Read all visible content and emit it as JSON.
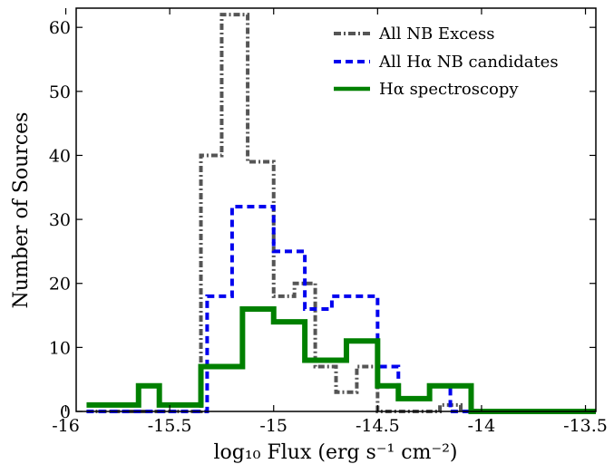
{
  "chart_data": {
    "type": "histogram",
    "xlabel": "log₁₀ Flux (erg s⁻¹ cm⁻²)",
    "ylabel": "Number of Sources",
    "xlim": [
      -15.95,
      -13.45
    ],
    "ylim": [
      0,
      63
    ],
    "xticks": [
      -16,
      -15.5,
      -15,
      -14.5,
      -14,
      -13.5
    ],
    "xtick_labels": [
      "-16",
      "-15.5",
      "-15",
      "-14.5",
      "-14",
      "-13.5"
    ],
    "yticks": [
      0,
      10,
      20,
      30,
      40,
      50,
      60
    ],
    "ytick_labels": [
      "0",
      "10",
      "20",
      "30",
      "40",
      "50",
      "60"
    ],
    "bin_edges": [
      -15.9,
      -15.65,
      -15.4,
      -15.15,
      -14.9,
      -14.65,
      -14.4,
      -14.15,
      -13.9,
      -13.65,
      -13.4
    ],
    "bin_edges_fine": [
      -15.9,
      -15.8,
      -15.7,
      -15.6,
      -15.5,
      -15.4,
      -15.3,
      -15.2,
      -15.1,
      -15.0,
      -14.9,
      -14.8,
      -14.7,
      -14.6,
      -14.5,
      -14.4,
      -14.3,
      -14.2,
      -14.1,
      -14.0,
      -13.9,
      -13.8,
      -13.7,
      -13.6,
      -13.5,
      -13.4
    ],
    "legend_position": "upper right",
    "series": [
      {
        "name": "All NB Excess",
        "color": "#555555",
        "style": "dashdot",
        "x": [
          -15.9,
          -15.65,
          -15.4,
          -15.3,
          -15.2,
          -15.05,
          -14.95,
          -14.85,
          -14.75,
          -14.65,
          -14.55,
          -14.45,
          -14.35,
          -14.25,
          -14.15,
          -14.05,
          -13.95,
          -13.85,
          -13.75,
          -13.65,
          -13.55
        ],
        "values": [
          0,
          0,
          0,
          40,
          62,
          39,
          18,
          20,
          7,
          3,
          7,
          0,
          0,
          0,
          1,
          0,
          0,
          0,
          0,
          0,
          0
        ]
      },
      {
        "name": "All Hα NB candidates",
        "color": "#0000ee",
        "style": "dashed",
        "values": [
          0,
          0,
          18,
          32,
          25,
          16,
          18,
          7,
          2,
          4,
          0
        ]
      },
      {
        "name": "Hα spectroscopy",
        "color": "#008000",
        "style": "solid",
        "values": [
          1,
          4,
          1,
          7,
          16,
          14,
          8,
          11,
          4,
          2,
          4,
          0,
          0
        ]
      }
    ]
  },
  "legend": {
    "entries": [
      {
        "label": "All NB Excess",
        "color": "#555555",
        "style": "dashdot"
      },
      {
        "label": "All Hα NB candidates",
        "color": "#0000ee",
        "style": "dashed"
      },
      {
        "label": "Hα spectroscopy",
        "color": "#008000",
        "style": "solid"
      }
    ]
  }
}
